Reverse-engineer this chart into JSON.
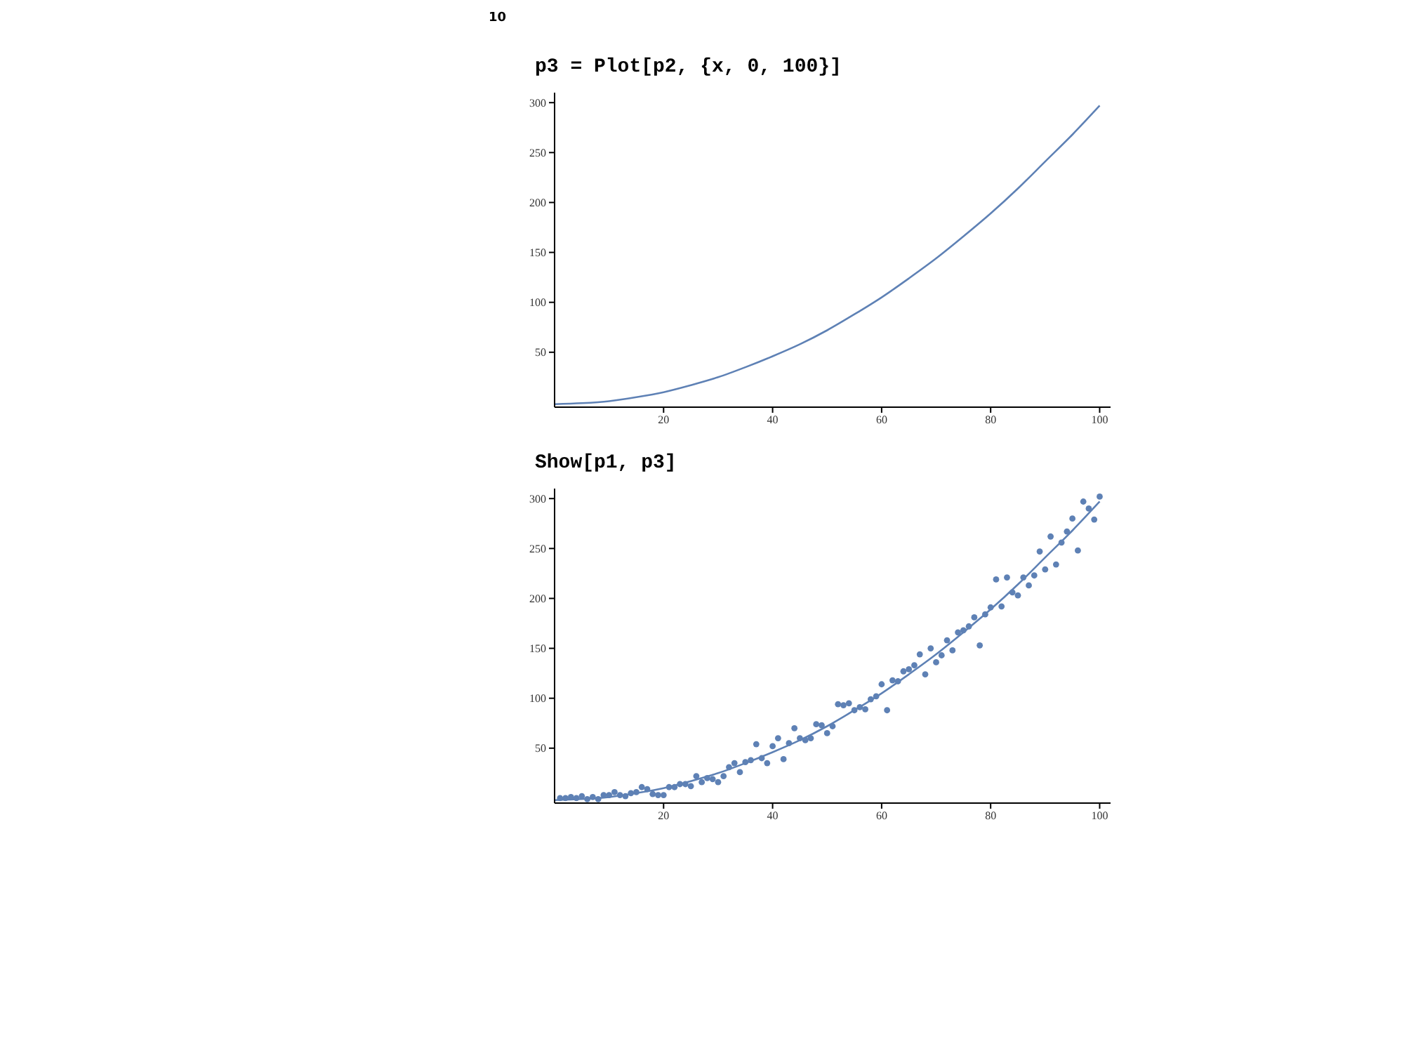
{
  "chart_data": [
    {
      "type": "line",
      "title": "p3 = Plot[p2, {x, 0, 100}]",
      "annotations": [
        "10"
      ],
      "xlim": [
        0,
        102
      ],
      "ylim": [
        -5,
        310
      ],
      "xticks": [
        20,
        40,
        60,
        80,
        100
      ],
      "yticks": [
        50,
        100,
        150,
        200,
        250,
        300
      ],
      "series": [
        {
          "color": "#5e81b5",
          "x": [
            0,
            5,
            10,
            15,
            20,
            25,
            30,
            35,
            40,
            45,
            50,
            55,
            60,
            65,
            70,
            75,
            80,
            85,
            90,
            95,
            100
          ],
          "values": [
            -2,
            -1,
            1,
            5,
            10,
            17,
            25,
            35,
            46,
            58,
            72,
            88,
            105,
            124,
            144,
            166,
            189,
            214,
            241,
            268,
            297
          ]
        }
      ]
    },
    {
      "type": "scatter",
      "title": "Show[p1, p3]",
      "xlim": [
        0,
        102
      ],
      "ylim": [
        -5,
        310
      ],
      "xticks": [
        20,
        40,
        60,
        80,
        100
      ],
      "yticks": [
        50,
        100,
        150,
        200,
        250,
        300
      ],
      "series": [
        {
          "marker": "circle",
          "color": "#5e81b5",
          "x": [
            1,
            2,
            3,
            4,
            5,
            6,
            7,
            8,
            9,
            10,
            11,
            12,
            13,
            14,
            15,
            16,
            17,
            18,
            19,
            20,
            21,
            22,
            23,
            24,
            25,
            26,
            27,
            28,
            29,
            30,
            31,
            32,
            33,
            34,
            35,
            36,
            37,
            38,
            39,
            40,
            41,
            42,
            43,
            44,
            45,
            46,
            47,
            48,
            49,
            50,
            51,
            52,
            53,
            54,
            55,
            56,
            57,
            58,
            59,
            60,
            61,
            62,
            63,
            64,
            65,
            66,
            67,
            68,
            69,
            70,
            71,
            72,
            73,
            74,
            75,
            76,
            77,
            78,
            79,
            80,
            81,
            82,
            83,
            84,
            85,
            86,
            87,
            88,
            89,
            90,
            91,
            92,
            93,
            94,
            95,
            96,
            97,
            98,
            99,
            100
          ],
          "values": [
            0,
            0,
            1,
            0,
            2,
            -1,
            1,
            -1,
            3,
            3,
            6,
            3,
            2,
            5,
            6,
            11,
            9,
            4,
            3,
            3,
            11,
            11,
            14,
            14,
            12,
            22,
            16,
            20,
            19,
            16,
            22,
            31,
            35,
            26,
            36,
            38,
            54,
            40,
            35,
            52,
            60,
            39,
            55,
            70,
            60,
            58,
            60,
            74,
            73,
            65,
            72,
            94,
            93,
            95,
            88,
            91,
            89,
            99,
            102,
            114,
            88,
            118,
            117,
            127,
            129,
            133,
            144,
            124,
            150,
            136,
            143,
            158,
            148,
            166,
            168,
            172,
            181,
            153,
            184,
            191,
            219,
            192,
            221,
            206,
            203,
            221,
            213,
            223,
            247,
            229,
            262,
            234,
            256,
            267,
            280,
            248,
            297,
            290,
            279,
            302
          ]
        },
        {
          "type": "line",
          "color": "#5e81b5",
          "x": [
            0,
            5,
            10,
            15,
            20,
            25,
            30,
            35,
            40,
            45,
            50,
            55,
            60,
            65,
            70,
            75,
            80,
            85,
            90,
            95,
            100
          ],
          "values": [
            -2,
            -1,
            1,
            5,
            10,
            17,
            25,
            35,
            46,
            58,
            72,
            88,
            105,
            124,
            144,
            166,
            189,
            214,
            241,
            268,
            297
          ]
        }
      ]
    }
  ]
}
